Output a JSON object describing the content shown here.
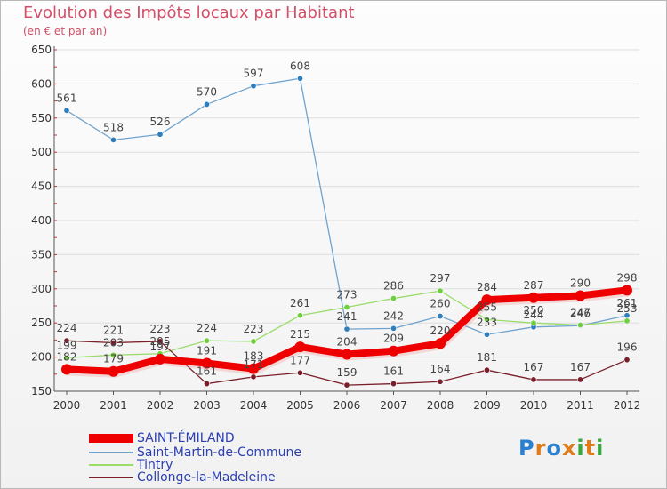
{
  "chart_data": {
    "type": "line",
    "title": "Evolution des Impôts locaux par Habitant",
    "subtitle": "(en € et par an)",
    "categories": [
      "2000",
      "2001",
      "2002",
      "2003",
      "2004",
      "2005",
      "2006",
      "2007",
      "2008",
      "2009",
      "2010",
      "2011",
      "2012"
    ],
    "ylim": [
      150,
      650
    ],
    "yticks": [
      150,
      200,
      250,
      300,
      350,
      400,
      450,
      500,
      550,
      600,
      650
    ],
    "series": [
      {
        "name": "Saint-Martin-de-Commune",
        "color": "#6fa3cf",
        "marker": "#2f7fbf",
        "values": [
          561,
          518,
          526,
          570,
          597,
          608,
          241,
          242,
          260,
          233,
          244,
          246,
          261
        ]
      },
      {
        "name": "Tintry",
        "color": "#9bdc6a",
        "marker": "#6fcf3c",
        "values": [
          199,
          203,
          205,
          224,
          223,
          261,
          273,
          286,
          297,
          255,
          250,
          247,
          253
        ]
      },
      {
        "name": "Collonge-la-Madeleine",
        "color": "#7a1f2a",
        "marker": "#7a1f2a",
        "values": [
          224,
          221,
          223,
          161,
          171,
          177,
          159,
          161,
          164,
          181,
          167,
          167,
          196
        ]
      },
      {
        "name": "SAINT-ÉMILAND",
        "color": "#ee0000",
        "marker": "#ee0000",
        "values": [
          182,
          179,
          197,
          191,
          183,
          215,
          204,
          209,
          220,
          284,
          287,
          290,
          298
        ]
      }
    ],
    "legend_order": [
      "SAINT-ÉMILAND",
      "Saint-Martin-de-Commune",
      "Tintry",
      "Collonge-la-Madeleine"
    ]
  },
  "branding": {
    "logo_text": "Proxiti"
  }
}
